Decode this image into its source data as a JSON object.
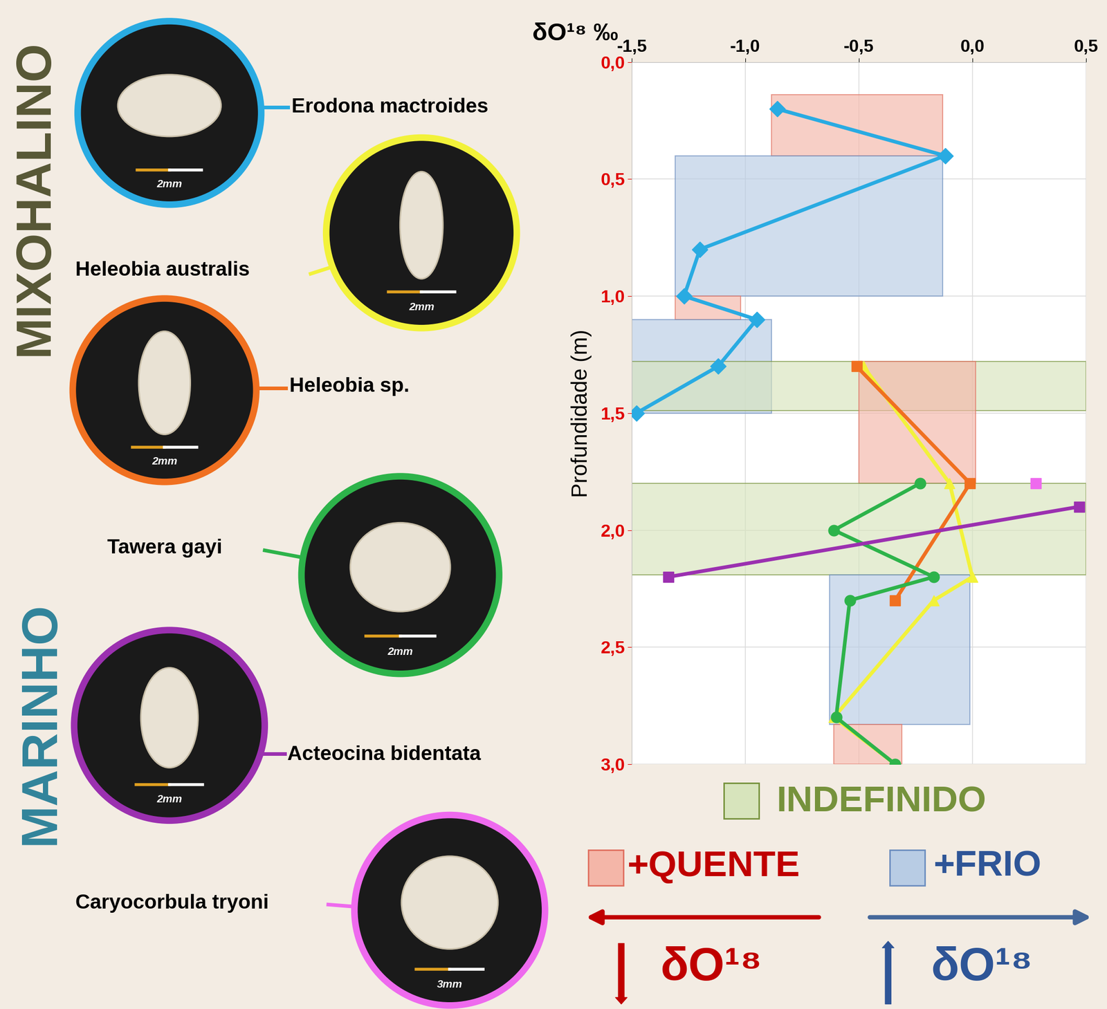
{
  "chart_data": {
    "type": "line",
    "xlabel": "δO¹⁸ ‰",
    "ylabel": "Profundidade (m)",
    "xlim": [
      -1.5,
      0.5
    ],
    "xticks": [
      {
        "value": -1.5,
        "label": "-1,5"
      },
      {
        "value": -1.0,
        "label": "-1,0"
      },
      {
        "value": -0.5,
        "label": "-0,5"
      },
      {
        "value": 0.0,
        "label": "0,0"
      },
      {
        "value": 0.5,
        "label": "0,5"
      }
    ],
    "ylim": [
      3.0,
      0.0
    ],
    "yticks": [
      {
        "value": 0.0,
        "label": "0,0"
      },
      {
        "value": 0.5,
        "label": "0,5"
      },
      {
        "value": 1.0,
        "label": "1,0"
      },
      {
        "value": 1.5,
        "label": "1,5"
      },
      {
        "value": 2.0,
        "label": "2,0"
      },
      {
        "value": 2.5,
        "label": "2,5"
      },
      {
        "value": 3.0,
        "label": "3,0"
      }
    ],
    "grid": true,
    "groups": [
      {
        "name": "MIXOHALINO",
        "color": "#575735"
      },
      {
        "name": "MARINHO",
        "color": "#31849b"
      }
    ],
    "series": [
      {
        "name": "Erodona mactroides",
        "group": "MIXOHALINO",
        "scale": "2mm",
        "color": "#29abe2",
        "marker": "diamond",
        "x": [
          -0.86,
          -0.12,
          -1.2,
          -1.27,
          -0.95,
          -1.12,
          -1.48
        ],
        "y": [
          0.2,
          0.4,
          0.8,
          1.0,
          1.1,
          1.3,
          1.5
        ]
      },
      {
        "name": "Heleobia australis",
        "group": "MIXOHALINO",
        "scale": "2mm",
        "color": "#f2f23a",
        "marker": "triangle",
        "x": [
          -0.48,
          -0.1,
          0.0,
          -0.17,
          -0.61,
          -0.34
        ],
        "y": [
          1.3,
          1.8,
          2.2,
          2.3,
          2.8,
          3.0
        ]
      },
      {
        "name": "Heleobia sp.",
        "group": "MIXOHALINO",
        "scale": "2mm",
        "color": "#f07020",
        "marker": "square",
        "x": [
          -0.51,
          -0.01,
          -0.34
        ],
        "y": [
          1.3,
          1.8,
          2.3
        ]
      },
      {
        "name": "Tawera gayi",
        "group": "MARINHO",
        "scale": "2mm",
        "color": "#2db34a",
        "marker": "circle",
        "x": [
          -0.23,
          -0.61,
          -0.17,
          -0.54,
          -0.6,
          -0.34
        ],
        "y": [
          1.8,
          2.0,
          2.2,
          2.3,
          2.8,
          3.0
        ]
      },
      {
        "name": "Acteocina bidentata",
        "group": "MARINHO",
        "scale": "2mm",
        "color": "#9b30b0",
        "marker": "square",
        "x": [
          0.47,
          -1.34
        ],
        "y": [
          1.9,
          2.2
        ]
      },
      {
        "name": "Caryocorbula tryoni",
        "group": "MARINHO",
        "scale": "3mm",
        "color": "#ee6aee",
        "marker": "square",
        "x": [
          0.28
        ],
        "y": [
          1.8
        ]
      }
    ],
    "region_classes": [
      {
        "name": "INDEFINIDO",
        "color": "#d7e4bc",
        "edge": "#76923c",
        "text_color": "#76923c"
      },
      {
        "name": "+QUENTE",
        "color": "#f4b6a8",
        "edge": "#e07060",
        "text_color": "#c00000"
      },
      {
        "name": "+FRIO",
        "color": "#b8cce4",
        "edge": "#6c8ebf",
        "text_color": "#2e5597"
      }
    ],
    "regions": [
      {
        "class": "+QUENTE",
        "x": [
          -0.885,
          -0.13
        ],
        "y": [
          0.14,
          0.4
        ]
      },
      {
        "class": "+FRIO",
        "x": [
          -1.31,
          -0.13
        ],
        "y": [
          0.4,
          1.0
        ]
      },
      {
        "class": "+QUENTE",
        "x": [
          -1.31,
          -1.02
        ],
        "y": [
          1.0,
          1.1
        ]
      },
      {
        "class": "+FRIO",
        "x": [
          -1.51,
          -0.885
        ],
        "y": [
          1.1,
          1.5
        ]
      },
      {
        "class": "INDEFINIDO",
        "x": [
          -1.51,
          0.5
        ],
        "y": [
          1.28,
          1.49
        ]
      },
      {
        "class": "+QUENTE",
        "x": [
          -0.5,
          0.015
        ],
        "y": [
          1.28,
          1.8
        ]
      },
      {
        "class": "INDEFINIDO",
        "x": [
          -1.51,
          0.5
        ],
        "y": [
          1.8,
          2.19
        ]
      },
      {
        "class": "+FRIO",
        "x": [
          -0.63,
          -0.01
        ],
        "y": [
          2.19,
          2.83
        ]
      },
      {
        "class": "+QUENTE",
        "x": [
          -0.61,
          -0.31
        ],
        "y": [
          2.83,
          3.0
        ]
      }
    ],
    "isotope_arrows": [
      {
        "text": "δO¹⁸",
        "color": "#c00000",
        "direction": "down"
      },
      {
        "text": "δO¹⁸",
        "color": "#2e5597",
        "direction": "up"
      }
    ]
  }
}
